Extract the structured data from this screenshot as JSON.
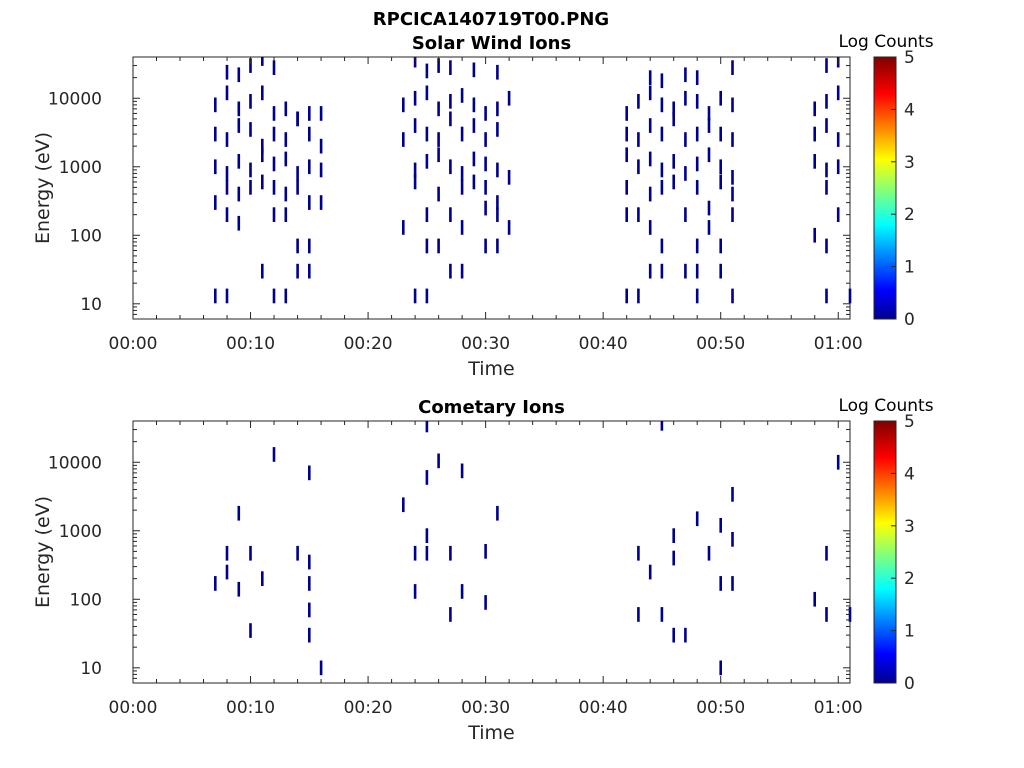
{
  "figure_title": "RPCICA140719T00.PNG",
  "chart_data": [
    {
      "type": "heatmap",
      "title": "Solar Wind Ions",
      "xlabel": "Time",
      "ylabel": "Energy (eV)",
      "xticks": [
        "00:00",
        "00:10",
        "00:20",
        "00:30",
        "00:40",
        "00:50",
        "01:00"
      ],
      "yticks": [
        "10",
        "100",
        "1000",
        "10000"
      ],
      "yscale": "log",
      "xlim": [
        "00:00",
        "01:01"
      ],
      "ylim": [
        6,
        40000
      ],
      "colorbar": {
        "label": "Log Counts",
        "ticks": [
          "0",
          "1",
          "2",
          "3",
          "4",
          "5"
        ],
        "range": [
          0,
          5
        ],
        "colormap": "jet"
      },
      "points": [
        [
          "00:07",
          13
        ],
        [
          "00:08",
          13
        ],
        [
          "00:12",
          13
        ],
        [
          "00:13",
          13
        ],
        [
          "00:24",
          13
        ],
        [
          "00:25",
          13
        ],
        [
          "00:42",
          13
        ],
        [
          "00:43",
          13
        ],
        [
          "00:48",
          13
        ],
        [
          "00:51",
          13
        ],
        [
          "00:59",
          13
        ],
        [
          "01:01",
          13
        ],
        [
          "00:11",
          30
        ],
        [
          "00:14",
          30
        ],
        [
          "00:15",
          30
        ],
        [
          "00:27",
          30
        ],
        [
          "00:28",
          30
        ],
        [
          "00:44",
          30
        ],
        [
          "00:45",
          30
        ],
        [
          "00:47",
          30
        ],
        [
          "00:48",
          30
        ],
        [
          "00:50",
          30
        ],
        [
          "00:14",
          70
        ],
        [
          "00:15",
          70
        ],
        [
          "00:25",
          70
        ],
        [
          "00:26",
          70
        ],
        [
          "00:30",
          70
        ],
        [
          "00:31",
          70
        ],
        [
          "00:45",
          70
        ],
        [
          "00:48",
          70
        ],
        [
          "00:50",
          70
        ],
        [
          "00:59",
          70
        ],
        [
          "00:23",
          130
        ],
        [
          "00:28",
          130
        ],
        [
          "00:32",
          130
        ],
        [
          "00:44",
          130
        ],
        [
          "00:49",
          130
        ],
        [
          "00:58",
          100
        ],
        [
          "00:08",
          200
        ],
        [
          "00:09",
          150
        ],
        [
          "00:12",
          200
        ],
        [
          "00:13",
          200
        ],
        [
          "00:16",
          300
        ],
        [
          "00:25",
          200
        ],
        [
          "00:27",
          200
        ],
        [
          "00:30",
          250
        ],
        [
          "00:31",
          200
        ],
        [
          "00:42",
          200
        ],
        [
          "00:43",
          200
        ],
        [
          "00:47",
          200
        ],
        [
          "00:49",
          250
        ],
        [
          "00:51",
          200
        ],
        [
          "01:00",
          200
        ],
        [
          "00:07",
          300
        ],
        [
          "00:08",
          500
        ],
        [
          "00:09",
          400
        ],
        [
          "00:10",
          500
        ],
        [
          "00:11",
          600
        ],
        [
          "00:12",
          500
        ],
        [
          "00:13",
          400
        ],
        [
          "00:14",
          500
        ],
        [
          "00:15",
          300
        ],
        [
          "00:24",
          600
        ],
        [
          "00:26",
          400
        ],
        [
          "00:28",
          500
        ],
        [
          "00:29",
          600
        ],
        [
          "00:30",
          500
        ],
        [
          "00:31",
          300
        ],
        [
          "00:42",
          500
        ],
        [
          "00:44",
          400
        ],
        [
          "00:45",
          500
        ],
        [
          "00:46",
          600
        ],
        [
          "00:48",
          500
        ],
        [
          "00:50",
          600
        ],
        [
          "00:51",
          400
        ],
        [
          "00:59",
          500
        ],
        [
          "00:07",
          1000
        ],
        [
          "00:08",
          800
        ],
        [
          "00:09",
          1200
        ],
        [
          "00:10",
          900
        ],
        [
          "00:11",
          1500
        ],
        [
          "00:12",
          1100
        ],
        [
          "00:13",
          1300
        ],
        [
          "00:14",
          800
        ],
        [
          "00:15",
          1000
        ],
        [
          "00:16",
          900
        ],
        [
          "00:24",
          900
        ],
        [
          "00:25",
          1200
        ],
        [
          "00:26",
          1500
        ],
        [
          "00:27",
          1000
        ],
        [
          "00:28",
          800
        ],
        [
          "00:29",
          1300
        ],
        [
          "00:30",
          1100
        ],
        [
          "00:31",
          900
        ],
        [
          "00:32",
          700
        ],
        [
          "00:42",
          1500
        ],
        [
          "00:43",
          1000
        ],
        [
          "00:44",
          1300
        ],
        [
          "00:45",
          900
        ],
        [
          "00:46",
          1200
        ],
        [
          "00:47",
          800
        ],
        [
          "00:48",
          1100
        ],
        [
          "00:49",
          1500
        ],
        [
          "00:50",
          1000
        ],
        [
          "00:51",
          700
        ],
        [
          "00:58",
          1200
        ],
        [
          "00:59",
          900
        ],
        [
          "01:00",
          1000
        ],
        [
          "00:07",
          3000
        ],
        [
          "00:08",
          2500
        ],
        [
          "00:09",
          4000
        ],
        [
          "00:10",
          3500
        ],
        [
          "00:11",
          2000
        ],
        [
          "00:12",
          3000
        ],
        [
          "00:13",
          2500
        ],
        [
          "00:14",
          5000
        ],
        [
          "00:15",
          3000
        ],
        [
          "00:16",
          2000
        ],
        [
          "00:23",
          2500
        ],
        [
          "00:24",
          4000
        ],
        [
          "00:25",
          3000
        ],
        [
          "00:26",
          2500
        ],
        [
          "00:27",
          5000
        ],
        [
          "00:28",
          3000
        ],
        [
          "00:29",
          4000
        ],
        [
          "00:30",
          2500
        ],
        [
          "00:31",
          3500
        ],
        [
          "00:42",
          3000
        ],
        [
          "00:43",
          2500
        ],
        [
          "00:44",
          4000
        ],
        [
          "00:45",
          3000
        ],
        [
          "00:46",
          5000
        ],
        [
          "00:47",
          2500
        ],
        [
          "00:48",
          3000
        ],
        [
          "00:49",
          4000
        ],
        [
          "00:50",
          3000
        ],
        [
          "00:51",
          2500
        ],
        [
          "00:58",
          3000
        ],
        [
          "00:59",
          4000
        ],
        [
          "01:00",
          2500
        ],
        [
          "00:07",
          8000
        ],
        [
          "00:08",
          12000
        ],
        [
          "00:09",
          7000
        ],
        [
          "00:10",
          9000
        ],
        [
          "00:11",
          12000
        ],
        [
          "00:12",
          6000
        ],
        [
          "00:13",
          7000
        ],
        [
          "00:14",
          5000
        ],
        [
          "00:15",
          6000
        ],
        [
          "00:16",
          6000
        ],
        [
          "00:23",
          8000
        ],
        [
          "00:24",
          10000
        ],
        [
          "00:25",
          12000
        ],
        [
          "00:26",
          7000
        ],
        [
          "00:27",
          9000
        ],
        [
          "00:28",
          11000
        ],
        [
          "00:29",
          8000
        ],
        [
          "00:30",
          6000
        ],
        [
          "00:31",
          7000
        ],
        [
          "00:32",
          10000
        ],
        [
          "00:42",
          6000
        ],
        [
          "00:43",
          9000
        ],
        [
          "00:44",
          12000
        ],
        [
          "00:45",
          8000
        ],
        [
          "00:46",
          7000
        ],
        [
          "00:47",
          10000
        ],
        [
          "00:48",
          9000
        ],
        [
          "00:49",
          6000
        ],
        [
          "00:50",
          10000
        ],
        [
          "00:51",
          8000
        ],
        [
          "00:58",
          7000
        ],
        [
          "00:59",
          9000
        ],
        [
          "01:00",
          12000
        ],
        [
          "00:08",
          24000
        ],
        [
          "00:09",
          22000
        ],
        [
          "00:10",
          30000
        ],
        [
          "00:11",
          38000
        ],
        [
          "00:12",
          28000
        ],
        [
          "00:24",
          36000
        ],
        [
          "00:25",
          25000
        ],
        [
          "00:26",
          30000
        ],
        [
          "00:27",
          28000
        ],
        [
          "00:29",
          26000
        ],
        [
          "00:31",
          24000
        ],
        [
          "00:44",
          20000
        ],
        [
          "00:45",
          18000
        ],
        [
          "00:47",
          22000
        ],
        [
          "00:48",
          20000
        ],
        [
          "00:51",
          28000
        ],
        [
          "00:59",
          30000
        ],
        [
          "01:00",
          36000
        ]
      ]
    },
    {
      "type": "heatmap",
      "title": "Cometary Ions",
      "xlabel": "Time",
      "ylabel": "Energy (eV)",
      "xticks": [
        "00:00",
        "00:10",
        "00:20",
        "00:30",
        "00:40",
        "00:50",
        "01:00"
      ],
      "yticks": [
        "10",
        "100",
        "1000",
        "10000"
      ],
      "yscale": "log",
      "xlim": [
        "00:00",
        "01:01"
      ],
      "ylim": [
        6,
        40000
      ],
      "colorbar": {
        "label": "Log Counts",
        "ticks": [
          "0",
          "1",
          "2",
          "3",
          "4",
          "5"
        ],
        "range": [
          0,
          5
        ],
        "colormap": "jet"
      },
      "points": [
        [
          "00:16",
          10
        ],
        [
          "00:50",
          10
        ],
        [
          "00:10",
          35
        ],
        [
          "00:15",
          30
        ],
        [
          "00:46",
          30
        ],
        [
          "00:47",
          30
        ],
        [
          "00:15",
          70
        ],
        [
          "00:27",
          60
        ],
        [
          "00:30",
          90
        ],
        [
          "00:43",
          60
        ],
        [
          "00:45",
          60
        ],
        [
          "00:58",
          100
        ],
        [
          "00:59",
          60
        ],
        [
          "01:01",
          60
        ],
        [
          "00:07",
          170
        ],
        [
          "00:08",
          250
        ],
        [
          "00:09",
          140
        ],
        [
          "00:11",
          200
        ],
        [
          "00:15",
          170
        ],
        [
          "00:24",
          130
        ],
        [
          "00:28",
          130
        ],
        [
          "00:44",
          250
        ],
        [
          "00:50",
          170
        ],
        [
          "00:51",
          170
        ],
        [
          "00:08",
          470
        ],
        [
          "00:10",
          470
        ],
        [
          "00:14",
          470
        ],
        [
          "00:15",
          350
        ],
        [
          "00:24",
          470
        ],
        [
          "00:25",
          470
        ],
        [
          "00:27",
          470
        ],
        [
          "00:30",
          500
        ],
        [
          "00:43",
          470
        ],
        [
          "00:46",
          400
        ],
        [
          "00:49",
          470
        ],
        [
          "00:59",
          470
        ],
        [
          "00:09",
          1800
        ],
        [
          "00:25",
          850
        ],
        [
          "00:31",
          1800
        ],
        [
          "00:46",
          850
        ],
        [
          "00:48",
          1500
        ],
        [
          "00:50",
          1200
        ],
        [
          "00:51",
          750
        ],
        [
          "00:23",
          2400
        ],
        [
          "00:51",
          3400
        ],
        [
          "00:12",
          13000
        ],
        [
          "00:15",
          7000
        ],
        [
          "00:25",
          6000
        ],
        [
          "00:26",
          10500
        ],
        [
          "00:28",
          7500
        ],
        [
          "01:00",
          10000
        ],
        [
          "00:25",
          35000
        ],
        [
          "00:45",
          37000
        ]
      ]
    }
  ]
}
